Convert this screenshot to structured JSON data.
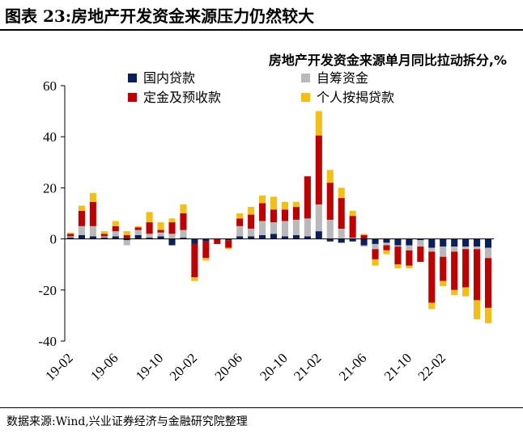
{
  "figure": {
    "title": "图表 23:房地产开发资金来源压力仍然较大",
    "source": "数据来源:Wind,兴业证券经济与金融研究院整理"
  },
  "chart_data": {
    "type": "bar",
    "stacked": true,
    "title": "房地产开发资金来源单月同比拉动拆分,%",
    "xlabel": "",
    "ylabel": "",
    "ylim": [
      -40,
      60
    ],
    "yticks": [
      -40,
      -20,
      0,
      20,
      40,
      60
    ],
    "xtick_labels": [
      "19-02",
      "19-06",
      "19-10",
      "20-02",
      "20-06",
      "20-10",
      "21-02",
      "21-06",
      "21-10",
      "22-02"
    ],
    "xtick_positions": [
      "19-02",
      "19-06",
      "19-10",
      "20-02",
      "20-06",
      "20-10",
      "21-02",
      "21-06",
      "21-10",
      "22-02"
    ],
    "grid": false,
    "legend": "top",
    "categories": [
      "19-02",
      "19-03",
      "19-04",
      "19-05",
      "19-06",
      "19-07",
      "19-08",
      "19-09",
      "19-10",
      "19-11",
      "19-12",
      "20-02",
      "20-03",
      "20-04",
      "20-05",
      "20-06",
      "20-07",
      "20-08",
      "20-09",
      "20-10",
      "20-11",
      "20-12",
      "21-02",
      "21-03",
      "21-04",
      "21-05",
      "21-06",
      "21-07",
      "21-08",
      "21-09",
      "21-10",
      "21-11",
      "21-12",
      "22-02",
      "22-03",
      "22-04",
      "22-05",
      "22-06"
    ],
    "series": [
      {
        "name": "国内贷款",
        "color": "#0b1f5c",
        "values": [
          0.5,
          1.5,
          1.0,
          0.5,
          1.0,
          -0.5,
          1.5,
          0.5,
          1.0,
          -2.5,
          0.5,
          -2.0,
          -1.0,
          0.0,
          -0.5,
          1.0,
          1.0,
          1.5,
          2.0,
          1.0,
          1.5,
          1.0,
          3.0,
          -1.0,
          -1.5,
          -1.0,
          -2.5,
          -2.0,
          -1.5,
          -2.5,
          -2.5,
          -0.5,
          -3.5,
          -3.0,
          -3.0,
          -3.0,
          -3.0,
          -3.5
        ]
      },
      {
        "name": "自筹资金",
        "color": "#b9b9b9",
        "values": [
          0.5,
          3.5,
          4.0,
          0.5,
          2.0,
          -2.0,
          2.0,
          1.5,
          1.5,
          2.0,
          3.0,
          0.0,
          0.0,
          0.0,
          0.0,
          4.0,
          3.0,
          5.5,
          4.5,
          6.0,
          6.0,
          7.0,
          10.5,
          7.5,
          4.0,
          0.5,
          -0.5,
          -2.0,
          -1.0,
          -0.5,
          -2.0,
          -2.5,
          -1.5,
          -4.0,
          -2.0,
          -1.0,
          -1.0,
          -4.0
        ]
      },
      {
        "name": "定金及预收款",
        "color": "#c00000",
        "values": [
          1.0,
          6.0,
          9.5,
          1.0,
          2.0,
          1.5,
          1.0,
          4.5,
          1.0,
          4.5,
          6.5,
          -13.0,
          -6.5,
          -2.0,
          -3.0,
          3.0,
          5.5,
          7.0,
          5.0,
          4.5,
          5.0,
          16.5,
          27.0,
          14.5,
          12.0,
          8.5,
          1.5,
          -4.0,
          -2.0,
          -7.0,
          -6.0,
          -6.0,
          -20.0,
          -9.5,
          -15.0,
          -15.0,
          -20.0,
          -19.5
        ]
      },
      {
        "name": "个人按揭贷款",
        "color": "#f4bf14",
        "values": [
          0.5,
          2.0,
          3.5,
          1.0,
          2.0,
          1.5,
          0.5,
          4.0,
          3.0,
          1.5,
          3.5,
          -1.5,
          -1.0,
          0.0,
          -0.5,
          2.0,
          3.0,
          3.0,
          5.0,
          3.0,
          2.0,
          0.0,
          9.5,
          5.0,
          4.0,
          2.0,
          0.5,
          -2.5,
          -1.5,
          -1.5,
          -1.0,
          0.0,
          -2.5,
          -2.0,
          -2.0,
          -3.5,
          -7.5,
          -6.0
        ]
      }
    ]
  }
}
